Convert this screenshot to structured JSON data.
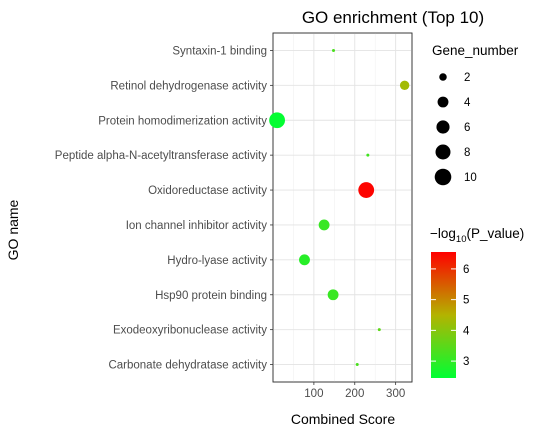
{
  "chart_data": {
    "type": "scatter",
    "title": "GO enrichment (Top 10)",
    "xlabel": "Combined Score",
    "ylabel": "GO name",
    "xlim": [
      0,
      340
    ],
    "xticks": [
      100,
      200,
      300
    ],
    "grid": true,
    "legend_position": "right",
    "points": [
      {
        "term": "Syntaxin-1 binding",
        "x": 148,
        "gene_number": 1,
        "neg_log10_p": 3.3
      },
      {
        "term": "Retinol dehydrogenase activity",
        "x": 322,
        "gene_number": 3,
        "neg_log10_p": 4.3
      },
      {
        "term": "Protein homodimerization activity",
        "x": 10,
        "gene_number": 9,
        "neg_log10_p": 2.5
      },
      {
        "term": "Peptide alpha-N-acetyltransferase activity",
        "x": 232,
        "gene_number": 1,
        "neg_log10_p": 3.2
      },
      {
        "term": "Oxidoreductase activity",
        "x": 228,
        "gene_number": 9,
        "neg_log10_p": 6.5
      },
      {
        "term": "Ion channel inhibitor activity",
        "x": 125,
        "gene_number": 4,
        "neg_log10_p": 3.1
      },
      {
        "term": "Hydro-lyase activity",
        "x": 77,
        "gene_number": 4,
        "neg_log10_p": 2.9
      },
      {
        "term": "Hsp90 protein binding",
        "x": 147,
        "gene_number": 4,
        "neg_log10_p": 3.1
      },
      {
        "term": "Exodeoxyribonuclease activity",
        "x": 260,
        "gene_number": 1,
        "neg_log10_p": 3.5
      },
      {
        "term": "Carbonate dehydratase activity",
        "x": 206,
        "gene_number": 1,
        "neg_log10_p": 3.3
      }
    ],
    "size_legend": {
      "title": "Gene_number",
      "values": [
        2,
        4,
        6,
        8,
        10
      ]
    },
    "color_legend": {
      "title_prefix": "−log",
      "title_subscript": "10",
      "title_suffix": "(P_value)",
      "min": 2.45,
      "max": 6.55,
      "ticks": [
        3,
        4,
        5,
        6
      ],
      "low_color": "#00ff33",
      "mid_color": "#b3b300",
      "high_color": "#ff0000"
    }
  }
}
